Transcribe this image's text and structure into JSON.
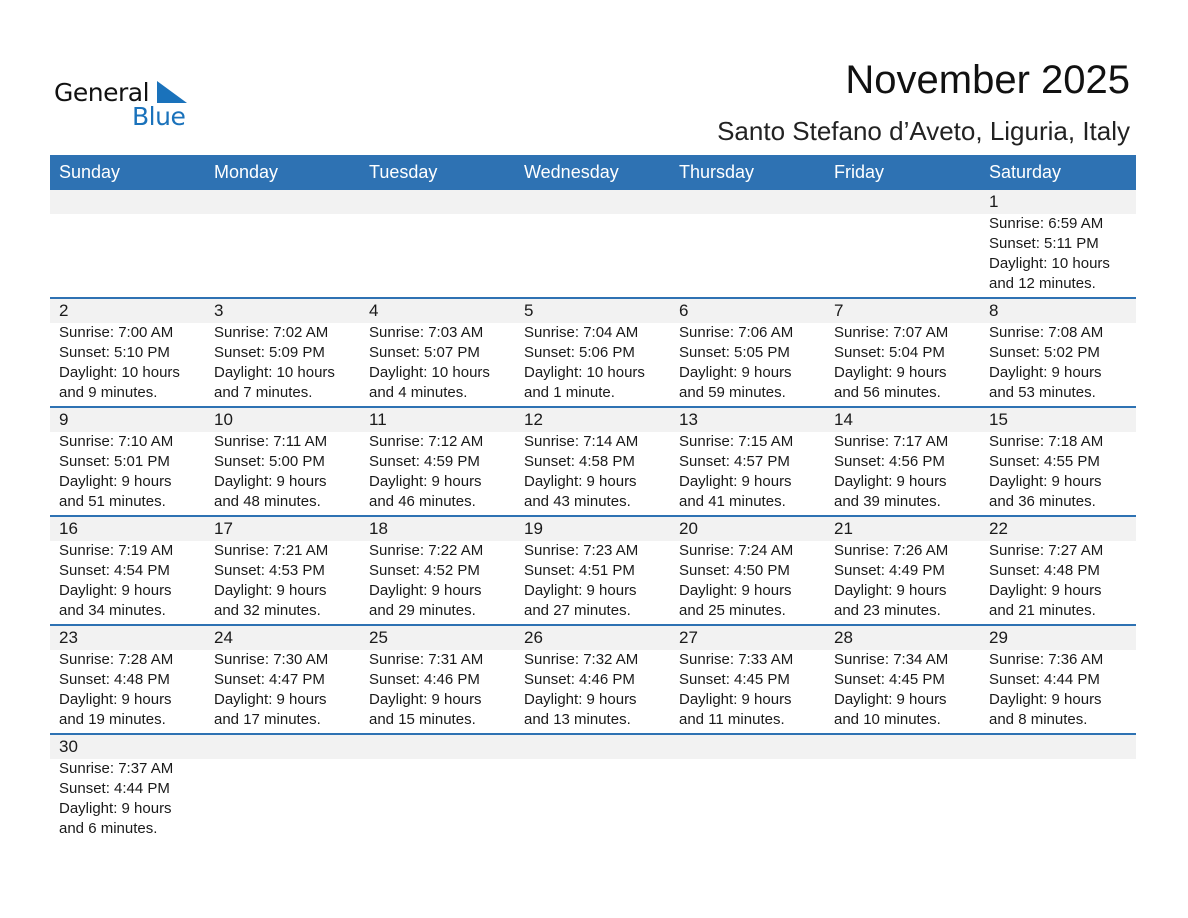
{
  "logo": {
    "line1": "General",
    "line2": "Blue"
  },
  "header": {
    "title": "November 2025",
    "location": "Santo Stefano d’Aveto, Liguria, Italy"
  },
  "colors": {
    "accent": "#2e72b3",
    "strip": "#f2f2f2",
    "logo_blue": "#1a72bb"
  },
  "weekdays": [
    "Sunday",
    "Monday",
    "Tuesday",
    "Wednesday",
    "Thursday",
    "Friday",
    "Saturday"
  ],
  "first_weekday_offset": 6,
  "days": [
    {
      "day": "1",
      "sunrise": "Sunrise: 6:59 AM",
      "sunset": "Sunset: 5:11 PM",
      "daylight1": "Daylight: 10 hours",
      "daylight2": "and 12 minutes."
    },
    {
      "day": "2",
      "sunrise": "Sunrise: 7:00 AM",
      "sunset": "Sunset: 5:10 PM",
      "daylight1": "Daylight: 10 hours",
      "daylight2": "and 9 minutes."
    },
    {
      "day": "3",
      "sunrise": "Sunrise: 7:02 AM",
      "sunset": "Sunset: 5:09 PM",
      "daylight1": "Daylight: 10 hours",
      "daylight2": "and 7 minutes."
    },
    {
      "day": "4",
      "sunrise": "Sunrise: 7:03 AM",
      "sunset": "Sunset: 5:07 PM",
      "daylight1": "Daylight: 10 hours",
      "daylight2": "and 4 minutes."
    },
    {
      "day": "5",
      "sunrise": "Sunrise: 7:04 AM",
      "sunset": "Sunset: 5:06 PM",
      "daylight1": "Daylight: 10 hours",
      "daylight2": "and 1 minute."
    },
    {
      "day": "6",
      "sunrise": "Sunrise: 7:06 AM",
      "sunset": "Sunset: 5:05 PM",
      "daylight1": "Daylight: 9 hours",
      "daylight2": "and 59 minutes."
    },
    {
      "day": "7",
      "sunrise": "Sunrise: 7:07 AM",
      "sunset": "Sunset: 5:04 PM",
      "daylight1": "Daylight: 9 hours",
      "daylight2": "and 56 minutes."
    },
    {
      "day": "8",
      "sunrise": "Sunrise: 7:08 AM",
      "sunset": "Sunset: 5:02 PM",
      "daylight1": "Daylight: 9 hours",
      "daylight2": "and 53 minutes."
    },
    {
      "day": "9",
      "sunrise": "Sunrise: 7:10 AM",
      "sunset": "Sunset: 5:01 PM",
      "daylight1": "Daylight: 9 hours",
      "daylight2": "and 51 minutes."
    },
    {
      "day": "10",
      "sunrise": "Sunrise: 7:11 AM",
      "sunset": "Sunset: 5:00 PM",
      "daylight1": "Daylight: 9 hours",
      "daylight2": "and 48 minutes."
    },
    {
      "day": "11",
      "sunrise": "Sunrise: 7:12 AM",
      "sunset": "Sunset: 4:59 PM",
      "daylight1": "Daylight: 9 hours",
      "daylight2": "and 46 minutes."
    },
    {
      "day": "12",
      "sunrise": "Sunrise: 7:14 AM",
      "sunset": "Sunset: 4:58 PM",
      "daylight1": "Daylight: 9 hours",
      "daylight2": "and 43 minutes."
    },
    {
      "day": "13",
      "sunrise": "Sunrise: 7:15 AM",
      "sunset": "Sunset: 4:57 PM",
      "daylight1": "Daylight: 9 hours",
      "daylight2": "and 41 minutes."
    },
    {
      "day": "14",
      "sunrise": "Sunrise: 7:17 AM",
      "sunset": "Sunset: 4:56 PM",
      "daylight1": "Daylight: 9 hours",
      "daylight2": "and 39 minutes."
    },
    {
      "day": "15",
      "sunrise": "Sunrise: 7:18 AM",
      "sunset": "Sunset: 4:55 PM",
      "daylight1": "Daylight: 9 hours",
      "daylight2": "and 36 minutes."
    },
    {
      "day": "16",
      "sunrise": "Sunrise: 7:19 AM",
      "sunset": "Sunset: 4:54 PM",
      "daylight1": "Daylight: 9 hours",
      "daylight2": "and 34 minutes."
    },
    {
      "day": "17",
      "sunrise": "Sunrise: 7:21 AM",
      "sunset": "Sunset: 4:53 PM",
      "daylight1": "Daylight: 9 hours",
      "daylight2": "and 32 minutes."
    },
    {
      "day": "18",
      "sunrise": "Sunrise: 7:22 AM",
      "sunset": "Sunset: 4:52 PM",
      "daylight1": "Daylight: 9 hours",
      "daylight2": "and 29 minutes."
    },
    {
      "day": "19",
      "sunrise": "Sunrise: 7:23 AM",
      "sunset": "Sunset: 4:51 PM",
      "daylight1": "Daylight: 9 hours",
      "daylight2": "and 27 minutes."
    },
    {
      "day": "20",
      "sunrise": "Sunrise: 7:24 AM",
      "sunset": "Sunset: 4:50 PM",
      "daylight1": "Daylight: 9 hours",
      "daylight2": "and 25 minutes."
    },
    {
      "day": "21",
      "sunrise": "Sunrise: 7:26 AM",
      "sunset": "Sunset: 4:49 PM",
      "daylight1": "Daylight: 9 hours",
      "daylight2": "and 23 minutes."
    },
    {
      "day": "22",
      "sunrise": "Sunrise: 7:27 AM",
      "sunset": "Sunset: 4:48 PM",
      "daylight1": "Daylight: 9 hours",
      "daylight2": "and 21 minutes."
    },
    {
      "day": "23",
      "sunrise": "Sunrise: 7:28 AM",
      "sunset": "Sunset: 4:48 PM",
      "daylight1": "Daylight: 9 hours",
      "daylight2": "and 19 minutes."
    },
    {
      "day": "24",
      "sunrise": "Sunrise: 7:30 AM",
      "sunset": "Sunset: 4:47 PM",
      "daylight1": "Daylight: 9 hours",
      "daylight2": "and 17 minutes."
    },
    {
      "day": "25",
      "sunrise": "Sunrise: 7:31 AM",
      "sunset": "Sunset: 4:46 PM",
      "daylight1": "Daylight: 9 hours",
      "daylight2": "and 15 minutes."
    },
    {
      "day": "26",
      "sunrise": "Sunrise: 7:32 AM",
      "sunset": "Sunset: 4:46 PM",
      "daylight1": "Daylight: 9 hours",
      "daylight2": "and 13 minutes."
    },
    {
      "day": "27",
      "sunrise": "Sunrise: 7:33 AM",
      "sunset": "Sunset: 4:45 PM",
      "daylight1": "Daylight: 9 hours",
      "daylight2": "and 11 minutes."
    },
    {
      "day": "28",
      "sunrise": "Sunrise: 7:34 AM",
      "sunset": "Sunset: 4:45 PM",
      "daylight1": "Daylight: 9 hours",
      "daylight2": "and 10 minutes."
    },
    {
      "day": "29",
      "sunrise": "Sunrise: 7:36 AM",
      "sunset": "Sunset: 4:44 PM",
      "daylight1": "Daylight: 9 hours",
      "daylight2": "and 8 minutes."
    },
    {
      "day": "30",
      "sunrise": "Sunrise: 7:37 AM",
      "sunset": "Sunset: 4:44 PM",
      "daylight1": "Daylight: 9 hours",
      "daylight2": "and 6 minutes."
    }
  ]
}
